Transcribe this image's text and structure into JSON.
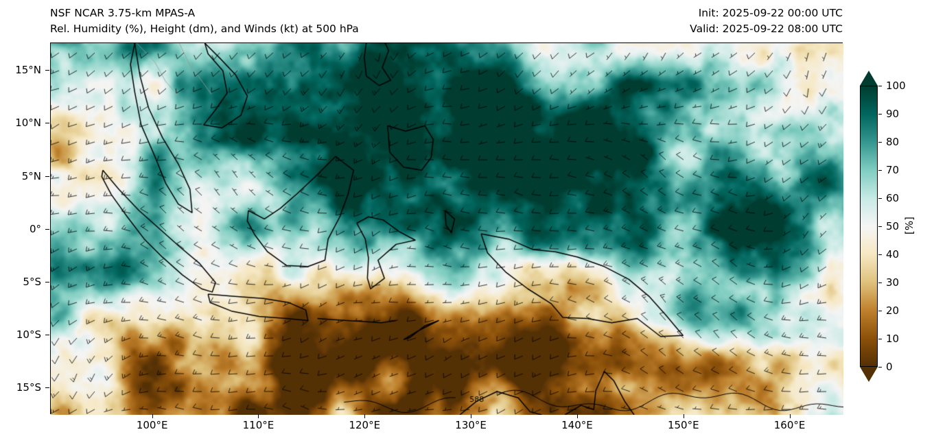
{
  "header": {
    "title_line1": "NSF NCAR 3.75-km MPAS-A",
    "title_line2": "Rel. Humidity (%), Height (dm), and Winds (kt) at 500 hPa",
    "init_label": "Init: 2025-09-22 00:00 UTC",
    "valid_label": "Valid: 2025-09-22 08:00 UTC"
  },
  "chart_data": {
    "type": "heatmap",
    "model": "NSF NCAR 3.75-km MPAS-A",
    "title": "Rel. Humidity (%), Height (dm), and Winds (kt) at 500 hPa",
    "init_time": "2025-09-22 00:00 UTC",
    "valid_time": "2025-09-22 08:00 UTC",
    "field": "Relative Humidity",
    "field_units": "%",
    "level": "500 hPa",
    "overlays": [
      "wind barbs (kt)",
      "geopotential height contours (dm)",
      "coastlines"
    ],
    "contour_labels": [
      "588"
    ],
    "x_axis": {
      "tick_labels": [
        "100°E",
        "110°E",
        "120°E",
        "130°E",
        "140°E",
        "150°E",
        "160°E"
      ],
      "tick_values": [
        100,
        110,
        120,
        130,
        140,
        150,
        160
      ],
      "range": [
        90.4,
        165.0
      ]
    },
    "y_axis": {
      "tick_labels": [
        "15°N",
        "10°N",
        "5°N",
        "0°",
        "5°S",
        "10°S",
        "15°S"
      ],
      "tick_values": [
        15,
        10,
        5,
        0,
        -5,
        -10,
        -15
      ],
      "range": [
        -17.5,
        17.6
      ]
    },
    "colorbar": {
      "label": "[%]",
      "tick_values": [
        0,
        10,
        20,
        30,
        40,
        50,
        60,
        70,
        80,
        90,
        100
      ],
      "range": [
        0,
        100
      ],
      "extend": "both",
      "colormap": "BrBG",
      "stops": [
        {
          "value": 0,
          "color": "#543005"
        },
        {
          "value": 10,
          "color": "#8c510a"
        },
        {
          "value": 20,
          "color": "#bf812d"
        },
        {
          "value": 30,
          "color": "#dfc27d"
        },
        {
          "value": 40,
          "color": "#f6e8c3"
        },
        {
          "value": 50,
          "color": "#f5f5f5"
        },
        {
          "value": 60,
          "color": "#c7eae5"
        },
        {
          "value": 70,
          "color": "#80cdc1"
        },
        {
          "value": 80,
          "color": "#35978f"
        },
        {
          "value": 90,
          "color": "#01665e"
        },
        {
          "value": 100,
          "color": "#003c30"
        }
      ],
      "position": "right"
    }
  }
}
